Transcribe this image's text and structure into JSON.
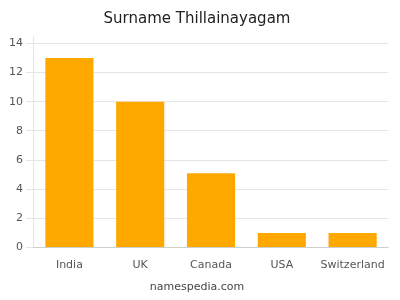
{
  "chart_data": {
    "type": "bar",
    "title": "Surname Thillainayagam",
    "categories": [
      "India",
      "UK",
      "Canada",
      "USA",
      "Switzerland"
    ],
    "values": [
      13,
      10,
      5.1,
      1,
      1
    ],
    "color": "#FFA800",
    "ylim": [
      0,
      14.5
    ],
    "yticks": [
      0,
      2,
      4,
      6,
      8,
      10,
      12,
      14
    ],
    "grid": true,
    "annotations": [
      "namespedia.com"
    ]
  }
}
